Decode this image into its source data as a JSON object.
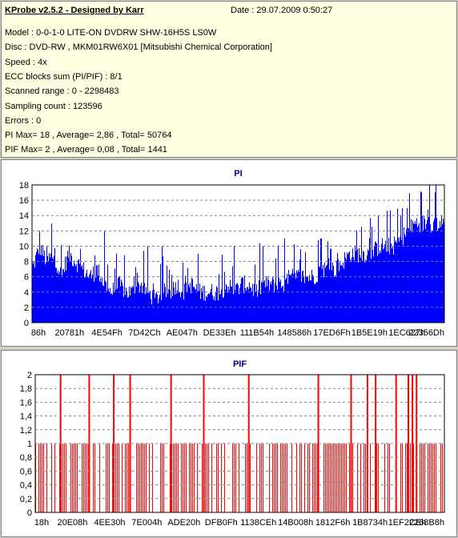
{
  "header": {
    "title": "KProbe v2.5.2 - Designed by Karr",
    "date": "Date : 29.07.2009 0:50:27"
  },
  "info_lines": [
    "Model : 0-0-1-0 LITE-ON DVDRW SHW-16H5S  LS0W",
    "Disc : DVD-RW , MKM01RW6X01 [Mitsubishi Chemical Corporation]",
    "Speed : 4x",
    "ECC blocks sum (PI/PIF) : 8/1",
    "Scanned range : 0 - 2298483",
    "Sampling count : 123596",
    "Errors : 0",
    "PI Max= 18 , Average= 2,86 , Total= 50764",
    "PIF Max= 2 , Average= 0,08 , Total= 1441"
  ],
  "colors": {
    "pi": "#0000ff",
    "pif": "#ff0000",
    "title": "#000080"
  },
  "chart_data": [
    {
      "type": "area",
      "title": "PI",
      "xlabel": "",
      "ylabel": "",
      "ylim": [
        0,
        18
      ],
      "yticks": [
        "0",
        "2",
        "4",
        "6",
        "8",
        "10",
        "12",
        "14",
        "16",
        "18"
      ],
      "xticks": [
        "86h",
        "20781h",
        "4E54Fh",
        "7D42Ch",
        "AE047h",
        "DE33Eh",
        "111B54h",
        "148586h",
        "17ED6Fh",
        "1B5E19h",
        "1EC627h",
        "22356Dh"
      ],
      "grid": true,
      "series": [
        {
          "values": [
            7,
            10,
            8,
            9,
            6,
            9,
            8,
            7,
            6,
            7,
            5,
            4,
            5,
            4,
            4,
            5,
            4,
            3,
            4,
            4,
            5,
            4,
            5,
            4,
            4,
            4,
            4,
            5,
            4,
            5,
            5,
            4,
            5,
            5,
            5,
            5,
            6,
            6,
            6,
            6,
            7,
            7,
            7,
            8,
            9,
            9,
            9,
            9,
            10,
            10,
            10,
            11,
            12,
            13,
            13,
            13,
            13,
            13
          ]
        }
      ],
      "peaks": [
        [
          0,
          8
        ],
        [
          1,
          12
        ],
        [
          2,
          10
        ],
        [
          10,
          12
        ],
        [
          16,
          10
        ],
        [
          18,
          10
        ],
        [
          23,
          9
        ],
        [
          28,
          10
        ],
        [
          32,
          10
        ],
        [
          35,
          11
        ],
        [
          40,
          11
        ],
        [
          45,
          12
        ],
        [
          48,
          14
        ],
        [
          52,
          15
        ],
        [
          54,
          17
        ],
        [
          56,
          18
        ]
      ]
    },
    {
      "type": "bar",
      "title": "PIF",
      "xlabel": "",
      "ylabel": "",
      "ylim": [
        0,
        2
      ],
      "yticks": [
        "0",
        "0,2",
        "0,4",
        "0,6",
        "0,8",
        "1",
        "1,2",
        "1,4",
        "1,6",
        "1,8",
        "2"
      ],
      "xticks": [
        "18h",
        "20E08h",
        "4EE30h",
        "7E004h",
        "ADE20h",
        "DFB0Fh",
        "1138CEh",
        "14B008h",
        "1812F6h",
        "1B8734h",
        "1EF2CEh",
        "2268B8h"
      ],
      "grid": true,
      "values_level_1_fraction": 0.6,
      "values_level_2_positions": [
        0.06,
        0.13,
        0.19,
        0.23,
        0.33,
        0.41,
        0.52,
        0.69,
        0.77,
        0.81,
        0.83,
        0.88,
        0.91,
        0.92,
        0.93
      ]
    }
  ]
}
